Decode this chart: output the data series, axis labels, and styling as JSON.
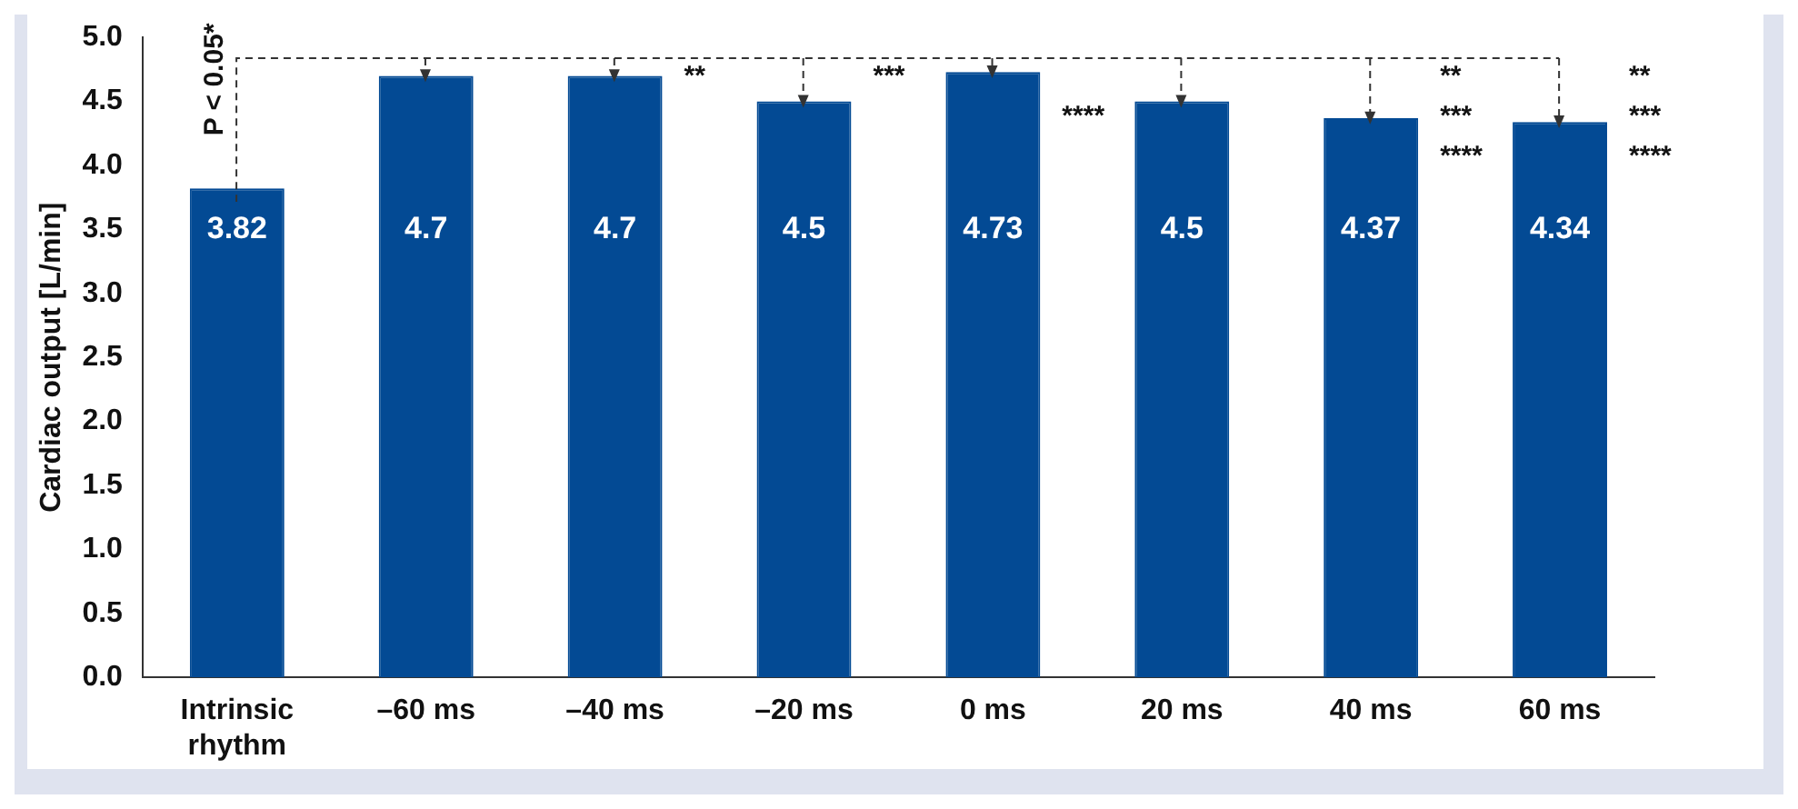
{
  "chart_data": {
    "type": "bar",
    "ylabel": "Cardiac output [L/min]",
    "categories": [
      "Intrinsic rhythm",
      "–60 ms",
      "–40 ms",
      "–20 ms",
      "0 ms",
      "20 ms",
      "40 ms",
      "60 ms"
    ],
    "values": [
      3.82,
      4.7,
      4.7,
      4.5,
      4.73,
      4.5,
      4.37,
      4.34
    ],
    "color": "#034a94",
    "data_labels": true,
    "grid": false,
    "legend": false,
    "ylim": [
      0,
      5
    ],
    "yticks": [
      {
        "value": 0,
        "label": "0.0"
      },
      {
        "value": 0.5,
        "label": "0.5"
      },
      {
        "value": 1,
        "label": "1.0"
      },
      {
        "value": 1.5,
        "label": "1.5"
      },
      {
        "value": 2,
        "label": "2.0"
      },
      {
        "value": 2.5,
        "label": "2.5"
      },
      {
        "value": 3,
        "label": "3.0"
      },
      {
        "value": 3.5,
        "label": "3.5"
      },
      {
        "value": 4,
        "label": "4.0"
      },
      {
        "value": 4.5,
        "label": "4.5"
      },
      {
        "value": 5,
        "label": "5.0"
      }
    ],
    "annotations": [
      "P < 0.05*",
      "**",
      "***",
      "****",
      "**",
      "***",
      "****",
      "**",
      "***",
      "****"
    ]
  }
}
